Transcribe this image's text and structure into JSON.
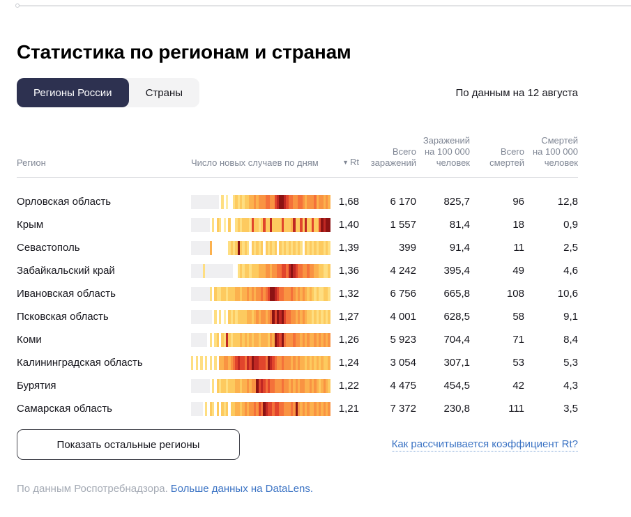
{
  "page": {
    "title": "Статистика по регионам и странам",
    "as_of": "По данным на 12 августа"
  },
  "tabs": {
    "regions_label": "Регионы России",
    "countries_label": "Страны"
  },
  "table": {
    "headers": {
      "region": "Регион",
      "daily_chart": "Число новых случаев по дням",
      "rt_sort_icon": "▼",
      "rt": "Rt",
      "total_cases": "Всего\nзаражений",
      "cases_per_100k": "Заражений\nна 100 000\nчеловек",
      "total_deaths": "Всего\nсмертей",
      "deaths_per_100k": "Смертей\nна 100 000\nчеловек"
    },
    "rows": [
      {
        "region": "Орловская область",
        "rt": "1,68",
        "total_cases": "6 170",
        "cases_per_100k": "825,7",
        "total_deaths": "96",
        "deaths_per_100k": "12,8",
        "spark": "gggggggggggg.3.2..34343445565666776689aa98776677656667566565"
      },
      {
        "region": "Крым",
        "rt": "1,40",
        "total_cases": "1 557",
        "cases_per_100k": "81,4",
        "total_deaths": "18",
        "deaths_per_100k": "0,9",
        "spark": "gggggggg.3.43.2.4..3434443844348449444484445944849448448a9aa"
      },
      {
        "region": "Севастополь",
        "rt": "1,39",
        "total_cases": "399",
        "cases_per_100k": "91,4",
        "total_deaths": "11",
        "deaths_per_100k": "2,5",
        "spark": "gggggggg5.......3434a4343.43434.43434.4343434343.43434344343"
      },
      {
        "region": "Забайкальский край",
        "rt": "1,36",
        "total_cases": "4 242",
        "cases_per_100k": "395,4",
        "total_deaths": "49",
        "deaths_per_100k": "4,6",
        "spark": "ggggg3gggggggggggg..34344344455566566778879a9877667665544334"
      },
      {
        "region": "Ивановская область",
        "rt": "1,32",
        "total_cases": "6 756",
        "cases_per_100k": "665,8",
        "total_deaths": "108",
        "deaths_per_100k": "10,6",
        "spark": "gggggggg3.433443444554556565667678aa987766676565654543433443"
      },
      {
        "region": "Псковская область",
        "rt": "1,27",
        "total_cases": "4 001",
        "cases_per_100k": "628,5",
        "total_deaths": "58",
        "deaths_per_100k": "9,1",
        "spark": "ggggggggg.3.3.2.4343444455456566567a8a9a87766565654434343434"
      },
      {
        "region": "Коми",
        "rt": "1,26",
        "total_cases": "5 923",
        "cases_per_100k": "704,4",
        "total_deaths": "71",
        "deaths_per_100k": "8,4",
        "spark": "ggggggg.3.34.43943444545454554555465a98a76667665656556565656"
      },
      {
        "region": "Калининградская область",
        "rt": "1,24",
        "total_cases": "3 054",
        "cases_per_100k": "307,1",
        "total_deaths": "53",
        "deaths_per_100k": "5,3",
        "spark": "3.3.3.3.3.3.55665678988798a998887a98766766656565545454545445"
      },
      {
        "region": "Бурятия",
        "rt": "1,22",
        "total_cases": "4 475",
        "cases_per_100k": "454,5",
        "total_deaths": "42",
        "deaths_per_100k": "4,3",
        "spark": "gggggggg.3.43443444554556566a8987877666766565656655656545654"
      },
      {
        "region": "Самарская область",
        "rt": "1,21",
        "total_cases": "7 372",
        "cases_per_100k": "230,8",
        "total_deaths": "111",
        "deaths_per_100k": "3,5",
        "spark": "ggggg.3.43.4.434.44554565667687a9887887766676a65656556565656"
      }
    ]
  },
  "spark_palette": {
    "g": "#efeff1",
    ".": "#ffffff",
    "1": "#fff5c9",
    "2": "#ffeca4",
    "3": "#fede81",
    "4": "#fdca5f",
    "5": "#fcb14e",
    "6": "#f99342",
    "7": "#f4713a",
    "8": "#e1452c",
    "9": "#c02823",
    "a": "#8c1313"
  },
  "footer": {
    "show_more_label": "Показать остальные регионы",
    "rt_link_label": "Как рассчитывается коэффициент Rt?",
    "source_text": "По данным Роспотребнадзора.",
    "source_link_label": "Больше данных на DataLens."
  },
  "colors": {
    "active_tab_bg": "#2d3150",
    "tab_group_bg": "#f3f3f4",
    "link_blue": "#3b73c4",
    "header_grey": "#7f8694",
    "muted_grey": "#a5abb5"
  }
}
